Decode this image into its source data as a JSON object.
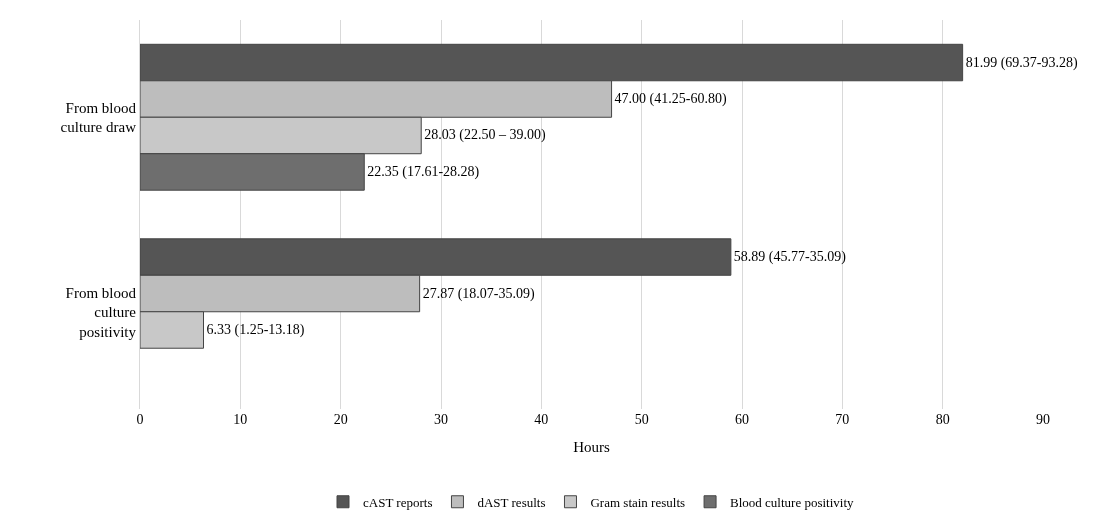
{
  "chart_data": {
    "type": "bar",
    "orientation": "horizontal",
    "xlabel": "Hours",
    "categories": [
      "From blood culture draw",
      "From blood culture positivity"
    ],
    "series": [
      {
        "name": "cAST reports",
        "color": "#555555",
        "values": [
          81.99,
          58.89
        ],
        "value_labels": [
          "81.99 (69.37-93.28)",
          "58.89 (45.77-35.09)"
        ]
      },
      {
        "name": "dAST results",
        "color": "#bdbdbd",
        "values": [
          47.0,
          27.87
        ],
        "value_labels": [
          "47.00 (41.25-60.80)",
          "27.87 (18.07-35.09)"
        ]
      },
      {
        "name": "Gram stain results",
        "color": "#c8c8c8",
        "values": [
          28.03,
          6.33
        ],
        "value_labels": [
          "28.03 (22.50 – 39.00)",
          "6.33 (1.25-13.18)"
        ]
      },
      {
        "name": "Blood culture positivity",
        "color": "#6e6e6e",
        "values": [
          22.35,
          null
        ],
        "value_labels": [
          "22.35 (17.61-28.28)",
          null
        ]
      }
    ],
    "xlim": [
      0,
      90
    ],
    "xticks": [
      0,
      10,
      20,
      30,
      40,
      50,
      60,
      70,
      80,
      90
    ],
    "grid": "x",
    "legend": "bottom"
  }
}
